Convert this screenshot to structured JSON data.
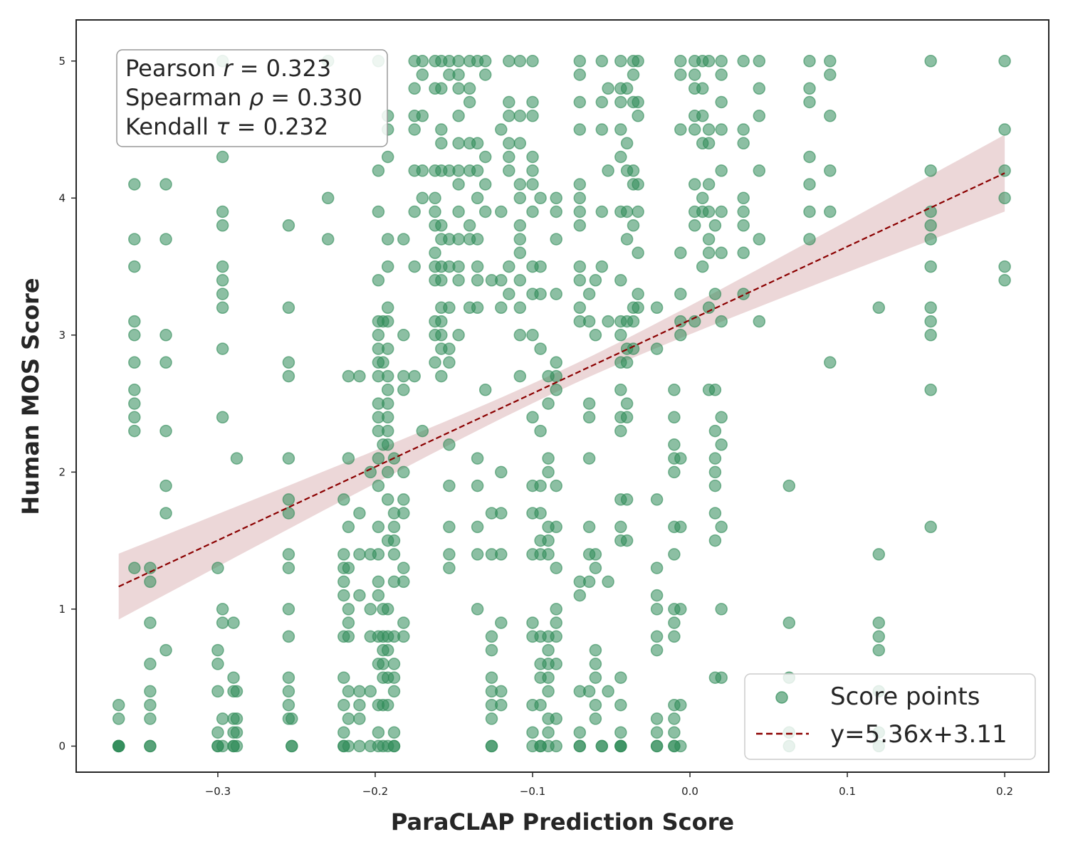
{
  "chart_data": {
    "type": "scatter",
    "xlabel": "ParaCLAP Prediction Score",
    "ylabel": "Human MOS Score",
    "xlim": [
      -0.39,
      0.228
    ],
    "ylim": [
      -0.19,
      5.3
    ],
    "xticks": [
      -0.3,
      -0.2,
      -0.1,
      0.0,
      0.1,
      0.2
    ],
    "xtick_labels": [
      "−0.3",
      "−0.2",
      "−0.1",
      "0.0",
      "0.1",
      "0.2"
    ],
    "yticks": [
      0,
      1,
      2,
      3,
      4,
      5
    ],
    "ytick_labels": [
      "0",
      "1",
      "2",
      "3",
      "4",
      "5"
    ],
    "grid": false,
    "stats": {
      "pearson_prefix": "Pearson ",
      "pearson_symbol": "r",
      "pearson_value": " = 0.323",
      "spearman_prefix": "Spearman ",
      "spearman_symbol": "ρ",
      "spearman_value": " = 0.330",
      "kendall_prefix": "Kendall ",
      "kendall_symbol": "τ",
      "kendall_value": " = 0.232"
    },
    "legend": {
      "position": "bottom-right",
      "scatter_label": "Score points",
      "line_label": "y=5.36x+3.11"
    },
    "colors": {
      "points": "#2e8b57",
      "fit_line": "#8b0000",
      "confidence_band": "#c98b8f",
      "axes": "#262626"
    },
    "regression": {
      "slope": 5.36,
      "intercept": 3.11,
      "x_range": [
        -0.363,
        0.2
      ],
      "ci_center_x": -0.08,
      "ci_half_width_at_center": 0.07,
      "ci_half_width_at_ends": [
        0.24,
        0.28
      ]
    },
    "columns": [
      {
        "x": -0.363,
        "y": [
          0,
          0,
          0,
          0,
          0.2,
          0.3
        ]
      },
      {
        "x": -0.353,
        "y": [
          1.3,
          2.3,
          2.4,
          2.5,
          2.6,
          2.8,
          3.0,
          3.1,
          3.5,
          3.7,
          4.1
        ]
      },
      {
        "x": -0.343,
        "y": [
          0,
          0,
          0.2,
          0.3,
          0.4,
          0.6,
          0.9,
          1.2,
          1.3
        ]
      },
      {
        "x": -0.333,
        "y": [
          0.7,
          1.7,
          1.9,
          2.3,
          2.8,
          3.0,
          3.7,
          4.1
        ]
      },
      {
        "x": -0.3,
        "y": [
          0,
          0,
          0.1,
          0.4,
          0.6,
          0.7,
          1.3
        ]
      },
      {
        "x": -0.297,
        "y": [
          0,
          0.2,
          0.9,
          1.0,
          2.4,
          2.9,
          3.2,
          3.3,
          3.4,
          3.5,
          3.8,
          3.9,
          4.3,
          5.0
        ]
      },
      {
        "x": -0.29,
        "y": [
          0,
          0,
          0.1,
          0.2,
          0.4,
          0.5,
          0.9
        ]
      },
      {
        "x": -0.288,
        "y": [
          0,
          0.1,
          0.2,
          0.4,
          2.1
        ]
      },
      {
        "x": -0.255,
        "y": [
          0.2,
          0.3,
          0.4,
          0.5,
          0.8,
          1.0,
          1.3,
          1.4,
          1.7,
          1.8,
          2.1,
          2.7,
          2.8,
          3.2,
          3.8
        ]
      },
      {
        "x": -0.253,
        "y": [
          0,
          0,
          0.2
        ]
      },
      {
        "x": -0.23,
        "y": [
          3.7,
          4.0,
          5.0
        ]
      },
      {
        "x": -0.22,
        "y": [
          0,
          0,
          0.1,
          0.3,
          0.5,
          0.8,
          1.1,
          1.2,
          1.3,
          1.4,
          1.8
        ]
      },
      {
        "x": -0.217,
        "y": [
          0,
          0.2,
          0.4,
          0.8,
          0.9,
          1.0,
          1.3,
          1.6,
          2.1,
          2.7
        ]
      },
      {
        "x": -0.21,
        "y": [
          0,
          0.2,
          0.3,
          0.4,
          1.1,
          1.4,
          1.7,
          2.7
        ]
      },
      {
        "x": -0.203,
        "y": [
          0,
          0.4,
          0.8,
          1.0,
          1.4,
          2.0
        ]
      },
      {
        "x": -0.198,
        "y": [
          0,
          0.1,
          0.3,
          0.6,
          0.8,
          1.1,
          1.2,
          1.4,
          1.6,
          1.9,
          2.1,
          2.3,
          2.4,
          2.5,
          2.7,
          2.8,
          2.9,
          3.0,
          3.1,
          3.4,
          3.9,
          4.2,
          5.0
        ]
      },
      {
        "x": -0.195,
        "y": [
          0,
          0.3,
          0.5,
          0.6,
          0.7,
          0.8,
          1.0,
          2.2,
          2.8,
          3.1
        ]
      },
      {
        "x": -0.192,
        "y": [
          0,
          0.3,
          0.5,
          0.7,
          0.8,
          1.0,
          1.5,
          1.8,
          2.0,
          2.2,
          2.3,
          2.4,
          2.5,
          2.6,
          2.7,
          2.9,
          3.1,
          3.2,
          3.5,
          3.7,
          4.3,
          4.5,
          4.6
        ]
      },
      {
        "x": -0.188,
        "y": [
          0,
          0,
          0.1,
          0.4,
          0.5,
          0.6,
          0.8,
          1.2,
          1.4,
          1.5,
          1.6,
          1.7,
          2.1
        ]
      },
      {
        "x": -0.182,
        "y": [
          0.8,
          0.9,
          1.2,
          1.3,
          1.7,
          1.8,
          2.0,
          2.6,
          2.7,
          3.0,
          3.7
        ]
      },
      {
        "x": -0.175,
        "y": [
          2.7,
          3.5,
          3.9,
          4.2,
          4.5,
          4.6,
          4.8,
          5.0
        ]
      },
      {
        "x": -0.17,
        "y": [
          2.3,
          4.0,
          4.2,
          4.6,
          4.9,
          5.0
        ]
      },
      {
        "x": -0.162,
        "y": [
          2.8,
          3.0,
          3.1,
          3.4,
          3.5,
          3.6,
          3.8,
          3.9,
          4.0,
          4.2,
          4.8,
          5.0
        ]
      },
      {
        "x": -0.158,
        "y": [
          2.7,
          2.9,
          3.0,
          3.1,
          3.2,
          3.4,
          3.5,
          3.7,
          3.8,
          4.2,
          4.4,
          4.5,
          4.8,
          5.0
        ]
      },
      {
        "x": -0.153,
        "y": [
          1.3,
          1.4,
          1.6,
          1.9,
          2.2,
          2.8,
          2.9,
          3.2,
          3.5,
          3.7,
          4.2,
          4.9,
          5.0
        ]
      },
      {
        "x": -0.147,
        "y": [
          3.0,
          3.4,
          3.5,
          3.7,
          3.9,
          4.1,
          4.2,
          4.4,
          4.6,
          4.8,
          4.9,
          5.0
        ]
      },
      {
        "x": -0.14,
        "y": [
          3.2,
          3.7,
          3.8,
          4.2,
          4.4,
          4.7,
          4.8,
          5.0
        ]
      },
      {
        "x": -0.135,
        "y": [
          1.0,
          1.4,
          1.6,
          1.9,
          2.1,
          3.2,
          3.4,
          3.5,
          3.7,
          4.0,
          4.2,
          4.4,
          5.0
        ]
      },
      {
        "x": -0.13,
        "y": [
          2.6,
          3.9,
          4.1,
          4.3,
          4.9,
          5.0
        ]
      },
      {
        "x": -0.126,
        "y": [
          0,
          0,
          0.2,
          0.3,
          0.4,
          0.5,
          0.7,
          0.8,
          1.4,
          1.7,
          3.4
        ]
      },
      {
        "x": -0.12,
        "y": [
          0.3,
          0.4,
          0.9,
          1.4,
          1.7,
          2.0,
          3.2,
          3.4,
          3.9,
          4.5
        ]
      },
      {
        "x": -0.115,
        "y": [
          3.3,
          3.5,
          4.2,
          4.3,
          4.4,
          4.6,
          4.7,
          5.0
        ]
      },
      {
        "x": -0.108,
        "y": [
          2.7,
          3.0,
          3.2,
          3.4,
          3.6,
          3.7,
          3.8,
          4.0,
          4.1,
          4.4,
          4.6,
          5.0
        ]
      },
      {
        "x": -0.1,
        "y": [
          0,
          0.1,
          0.3,
          0.8,
          0.9,
          1.4,
          1.7,
          1.9,
          2.4,
          3.0,
          3.3,
          3.5,
          3.9,
          4.1,
          4.2,
          4.3,
          4.6,
          4.7,
          5.0
        ]
      },
      {
        "x": -0.095,
        "y": [
          0,
          0,
          0.3,
          0.5,
          0.6,
          0.8,
          1.4,
          1.5,
          1.7,
          1.9,
          2.3,
          2.9,
          3.3,
          3.5,
          4.0
        ]
      },
      {
        "x": -0.09,
        "y": [
          0,
          0.1,
          0.2,
          0.4,
          0.5,
          0.6,
          0.7,
          0.8,
          1.4,
          1.5,
          1.6,
          2.0,
          2.1,
          2.5,
          2.7
        ]
      },
      {
        "x": -0.085,
        "y": [
          0,
          0.2,
          0.6,
          0.8,
          0.9,
          1.0,
          1.3,
          1.6,
          1.9,
          2.6,
          2.7,
          2.8,
          3.3,
          3.7,
          3.9,
          4.0
        ]
      },
      {
        "x": -0.07,
        "y": [
          0,
          0,
          0.1,
          0.4,
          1.1,
          1.2,
          3.1,
          3.2,
          3.4,
          3.5,
          3.8,
          3.9,
          4.0,
          4.1,
          4.5,
          4.7,
          4.9,
          5.0
        ]
      },
      {
        "x": -0.064,
        "y": [
          0.4,
          1.2,
          1.4,
          1.6,
          2.1,
          2.4,
          2.5,
          3.1,
          3.3
        ]
      },
      {
        "x": -0.06,
        "y": [
          0.2,
          0.3,
          0.5,
          0.6,
          0.7,
          1.3,
          1.4,
          3.0,
          3.4
        ]
      },
      {
        "x": -0.056,
        "y": [
          0,
          0,
          3.5,
          3.9,
          4.5,
          4.7,
          5.0
        ]
      },
      {
        "x": -0.052,
        "y": [
          0.4,
          1.2,
          3.1,
          4.2,
          4.8
        ]
      },
      {
        "x": -0.044,
        "y": [
          0,
          0,
          0,
          0.1,
          0.3,
          0.5,
          1.5,
          1.6,
          1.8,
          2.3,
          2.4,
          2.6,
          2.8,
          3.0,
          3.1,
          3.4,
          3.9,
          4.3,
          4.5,
          4.7,
          4.8,
          5.0
        ]
      },
      {
        "x": -0.04,
        "y": [
          1.5,
          1.8,
          2.4,
          2.5,
          2.8,
          2.9,
          3.1,
          3.7,
          3.9,
          4.2,
          4.4,
          4.8
        ]
      },
      {
        "x": -0.036,
        "y": [
          2.9,
          3.1,
          3.2,
          3.8,
          4.1,
          4.2,
          4.7,
          4.9,
          5.0
        ]
      },
      {
        "x": -0.033,
        "y": [
          3.2,
          3.3,
          3.6,
          3.9,
          4.1,
          4.6,
          4.7,
          5.0
        ]
      },
      {
        "x": -0.021,
        "y": [
          0,
          0,
          0.1,
          0.2,
          0.7,
          0.8,
          1.0,
          1.1,
          1.3,
          1.8,
          2.9,
          3.2
        ]
      },
      {
        "x": -0.01,
        "y": [
          0,
          0,
          0.1,
          0.2,
          0.3,
          0.8,
          0.9,
          1.0,
          1.4,
          1.6,
          2.0,
          2.1,
          2.2,
          2.4,
          2.6
        ]
      },
      {
        "x": -0.006,
        "y": [
          0,
          0.3,
          1.0,
          1.6,
          2.1,
          3.0,
          3.1,
          3.3,
          3.6,
          4.5,
          4.9,
          5.0
        ]
      },
      {
        "x": 0.003,
        "y": [
          3.1,
          3.8,
          3.9,
          4.1,
          4.5,
          4.6,
          4.8,
          4.9,
          5.0
        ]
      },
      {
        "x": 0.008,
        "y": [
          3.5,
          3.9,
          4.0,
          4.4,
          4.6,
          4.8,
          5.0
        ]
      },
      {
        "x": 0.012,
        "y": [
          2.6,
          3.2,
          3.6,
          3.7,
          3.9,
          4.1,
          4.4,
          4.5,
          5.0
        ]
      },
      {
        "x": 0.016,
        "y": [
          0.5,
          1.5,
          1.7,
          1.9,
          2.0,
          2.1,
          2.3,
          2.6,
          3.3,
          3.8
        ]
      },
      {
        "x": 0.02,
        "y": [
          0.5,
          1.0,
          1.6,
          2.2,
          2.4,
          3.1,
          3.6,
          3.9,
          4.2,
          4.5,
          4.7,
          4.9,
          5.0
        ]
      },
      {
        "x": 0.034,
        "y": [
          3.3,
          3.6,
          3.8,
          3.9,
          4.0,
          4.4,
          4.5,
          5.0
        ]
      },
      {
        "x": 0.044,
        "y": [
          3.1,
          3.7,
          4.2,
          4.6,
          4.8,
          5.0
        ]
      },
      {
        "x": 0.063,
        "y": [
          0,
          0.1,
          0.5,
          0.9,
          1.9
        ]
      },
      {
        "x": 0.076,
        "y": [
          3.7,
          3.9,
          4.1,
          4.3,
          4.7,
          4.8,
          5.0
        ]
      },
      {
        "x": 0.089,
        "y": [
          2.8,
          3.9,
          4.2,
          4.6,
          4.9,
          5.0
        ]
      },
      {
        "x": 0.12,
        "y": [
          0,
          0.1,
          0.4,
          0.7,
          0.8,
          0.9,
          1.4,
          3.2
        ]
      },
      {
        "x": 0.153,
        "y": [
          1.6,
          2.6,
          3.0,
          3.1,
          3.2,
          3.5,
          3.7,
          3.8,
          3.9,
          4.2,
          5.0
        ]
      },
      {
        "x": 0.2,
        "y": [
          3.4,
          3.5,
          4.0,
          4.2,
          4.5,
          5.0
        ]
      }
    ]
  }
}
